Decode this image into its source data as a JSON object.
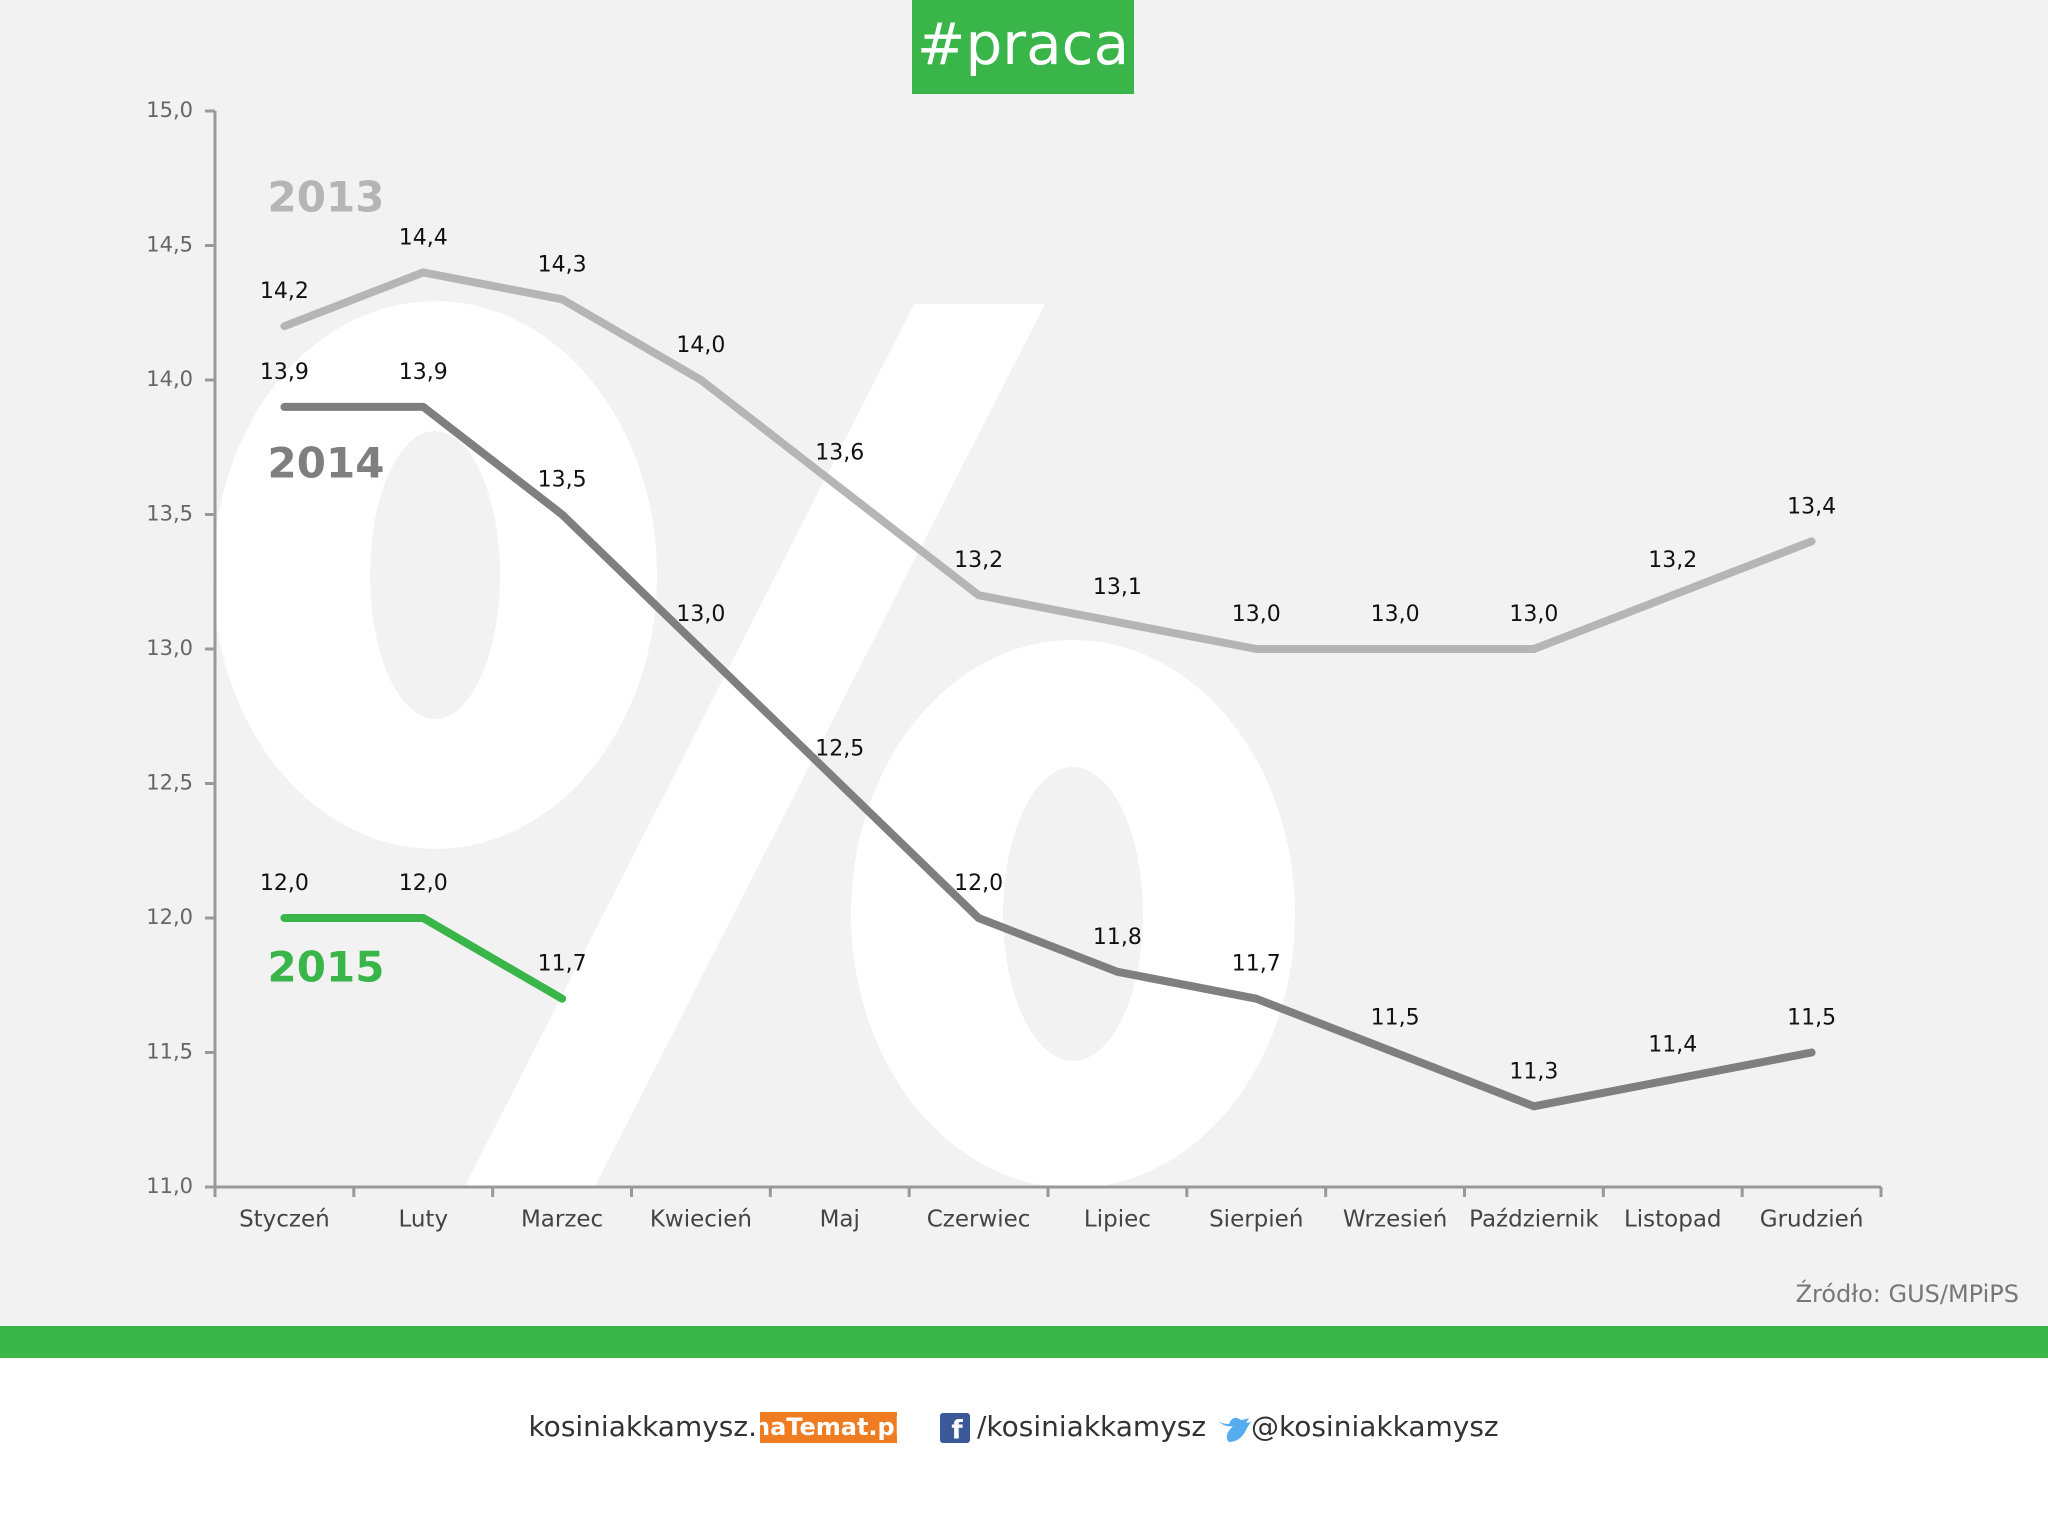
{
  "header": {
    "title": "#praca"
  },
  "chart_data": {
    "type": "line",
    "categories": [
      "Styczeń",
      "Luty",
      "Marzec",
      "Kwiecień",
      "Maj",
      "Czerwiec",
      "Lipiec",
      "Sierpień",
      "Wrzesień",
      "Październik",
      "Listopad",
      "Grudzień"
    ],
    "series": [
      {
        "name": "2013",
        "color": "#b5b5b5",
        "values": [
          14.2,
          14.4,
          14.3,
          14.0,
          13.6,
          13.2,
          13.1,
          13.0,
          13.0,
          13.0,
          13.2,
          13.4
        ],
        "value_labels": [
          "14,2",
          "14,4",
          "14,3",
          "14,0",
          "13,6",
          "13,2",
          "13,1",
          "13,0",
          "13,0",
          "13,0",
          "13,2",
          "13,4"
        ]
      },
      {
        "name": "2014",
        "color": "#7f7f7f",
        "values": [
          13.9,
          13.9,
          13.5,
          13.0,
          12.5,
          12.0,
          11.8,
          11.7,
          11.5,
          11.3,
          11.4,
          11.5
        ],
        "value_labels": [
          "13,9",
          "13,9",
          "13,5",
          "13,0",
          "12,5",
          "12,0",
          "11,8",
          "11,7",
          "11,5",
          "11,3",
          "11,4",
          "11,5"
        ]
      },
      {
        "name": "2015",
        "color": "#3ab54a",
        "values": [
          12.0,
          12.0,
          11.7,
          null,
          null,
          null,
          null,
          null,
          null,
          null,
          null,
          null
        ],
        "value_labels": [
          "12,0",
          "12,0",
          "11,7",
          null,
          null,
          null,
          null,
          null,
          null,
          null,
          null,
          null
        ]
      }
    ],
    "ylim": [
      11.0,
      15.0
    ],
    "yticks": [
      {
        "value": 11.0,
        "label": "11,0"
      },
      {
        "value": 11.5,
        "label": "11,5"
      },
      {
        "value": 12.0,
        "label": "12,0"
      },
      {
        "value": 12.5,
        "label": "12,5"
      },
      {
        "value": 13.0,
        "label": "13,0"
      },
      {
        "value": 13.5,
        "label": "13,5"
      },
      {
        "value": 14.0,
        "label": "14,0"
      },
      {
        "value": 14.5,
        "label": "14,5"
      },
      {
        "value": 15.0,
        "label": "15,0"
      }
    ],
    "grid": false,
    "source": "Źródło: GUS/MPiPS"
  },
  "footer": {
    "site": "kosiniakkamysz.",
    "badge": "naTemat.pl",
    "facebook": "/kosiniakkamysz",
    "twitter": "@kosiniakkamysz"
  }
}
